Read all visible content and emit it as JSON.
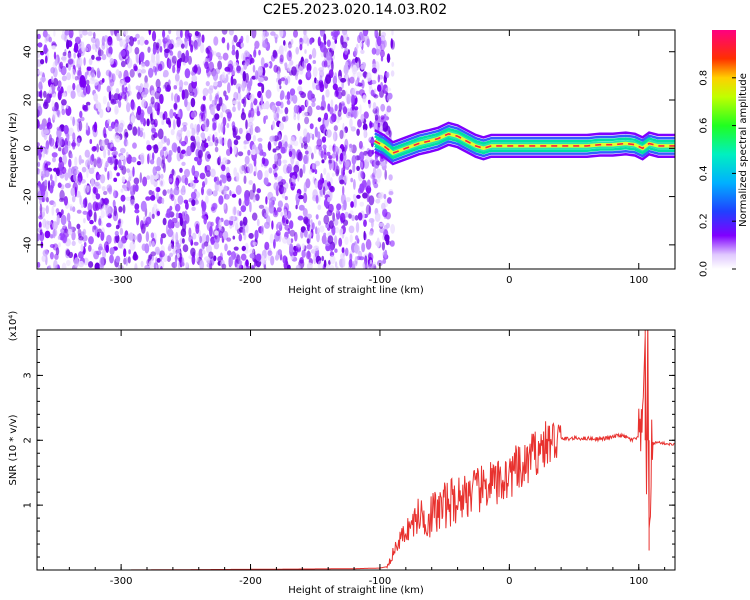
{
  "title": "C2E5.2023.020.14.03.R02",
  "colors": {
    "snr_line": "#e8322f",
    "spectrum_noise": "#7f00ff",
    "band_edge": "#3060ff",
    "band_mid": "#00e0a0",
    "band_core": "#ff2040",
    "axis": "#000000"
  },
  "chart_data": [
    {
      "type": "heatmap",
      "title": "C2E5.2023.020.14.03.R02",
      "xlabel": "Height of straight line (km)",
      "ylabel": "Frequency (Hz)",
      "xlim": [
        -365,
        128
      ],
      "ylim": [
        -50,
        49
      ],
      "x_ticks": [
        -300,
        -200,
        -100,
        0,
        100
      ],
      "x_tick_labels": [
        "-300",
        "-200",
        "-100",
        "0",
        "100"
      ],
      "y_ticks": [
        -40,
        -20,
        0,
        20,
        40
      ],
      "y_tick_labels": [
        "-40",
        "-20",
        "0",
        "20",
        "40"
      ],
      "grid": false,
      "colorbar": {
        "label": "Normalized spectral amplitude",
        "range": [
          0,
          1
        ],
        "ticks": [
          0.0,
          0.2,
          0.4,
          0.6,
          0.8
        ],
        "tick_labels": [
          "0.0",
          "0.2",
          "0.4",
          "0.6",
          "0.8"
        ],
        "colormap": "rainbow (white-violet-blue-cyan-green-yellow-red-magenta)"
      },
      "regions": [
        {
          "name": "noise",
          "x_range": [
            -365,
            -96
          ],
          "description": "broadband low-amplitude speckle across all frequencies"
        },
        {
          "name": "signal",
          "x_range": [
            -104,
            128
          ],
          "description": "narrow high-amplitude band near 0 Hz"
        }
      ],
      "signal_track": {
        "x": [
          -104,
          -97,
          -90,
          -80,
          -70,
          -62,
          -55,
          -47,
          -40,
          -33,
          -26,
          -20,
          -14,
          -8,
          0,
          20,
          40,
          60,
          70,
          80,
          90,
          97,
          103,
          108,
          115,
          128
        ],
        "freq_hz": [
          3,
          1,
          -2,
          0,
          2,
          3,
          4,
          6,
          5,
          3,
          1,
          0,
          1,
          1,
          1,
          1,
          1,
          1,
          1.5,
          1.5,
          2,
          1.5,
          0,
          2,
          1,
          1
        ]
      }
    },
    {
      "type": "line",
      "xlabel": "Height of straight line (km)",
      "ylabel": "SNR (10 * v/v)",
      "y_multiplier": "(x10⁴)",
      "xlim": [
        -365,
        128
      ],
      "ylim": [
        0,
        3.7
      ],
      "x_ticks": [
        -300,
        -200,
        -100,
        0,
        100
      ],
      "x_tick_labels": [
        "-300",
        "-200",
        "-100",
        "0",
        "100"
      ],
      "y_ticks": [
        1,
        2,
        3
      ],
      "y_tick_labels": [
        "1",
        "2",
        "3"
      ],
      "grid": false,
      "series": [
        {
          "color": "#e8322f",
          "x": [
            -365,
            -300,
            -200,
            -120,
            -100,
            -95,
            -90,
            -85,
            -80,
            -75,
            -70,
            -65,
            -60,
            -55,
            -50,
            -45,
            -40,
            -35,
            -30,
            -25,
            -20,
            -15,
            -10,
            -5,
            0,
            5,
            10,
            15,
            20,
            25,
            30,
            35,
            40,
            50,
            60,
            70,
            75,
            80,
            85,
            90,
            95,
            100,
            103,
            105,
            106,
            107,
            108,
            110,
            115,
            120,
            128
          ],
          "y": [
            0.0,
            0.0,
            0.01,
            0.02,
            0.03,
            0.05,
            0.25,
            0.45,
            0.6,
            0.7,
            0.85,
            0.8,
            0.85,
            0.9,
            1.0,
            1.05,
            1.1,
            1.15,
            1.2,
            1.2,
            1.25,
            1.35,
            1.3,
            1.4,
            1.45,
            1.55,
            1.5,
            1.7,
            1.8,
            1.9,
            1.95,
            2.0,
            2.02,
            2.03,
            2.03,
            2.02,
            2.03,
            2.05,
            2.08,
            2.05,
            2.0,
            2.05,
            2.1,
            3.7,
            1.4,
            3.5,
            0.3,
            1.95,
            1.97,
            1.95,
            1.93
          ]
        }
      ]
    }
  ]
}
